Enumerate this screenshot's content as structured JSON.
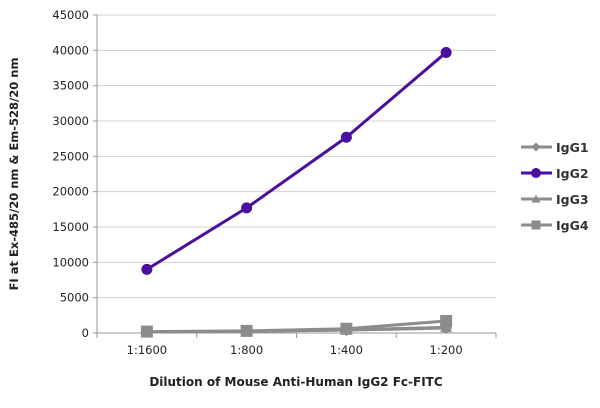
{
  "chart_data": {
    "type": "line",
    "title": "",
    "xlabel": "Dilution of Mouse Anti-Human IgG2 Fc-FITC",
    "ylabel": "FI at Ex-485/20 nm & Em-528/20 nm",
    "categories": [
      "1:1600",
      "1:800",
      "1:400",
      "1:200"
    ],
    "ylim": [
      0,
      45000
    ],
    "yticks": [
      0,
      5000,
      10000,
      15000,
      20000,
      25000,
      30000,
      35000,
      40000,
      45000
    ],
    "grid": true,
    "legend": "right",
    "series": [
      {
        "name": "IgG1",
        "values": [
          150,
          250,
          400,
          700
        ],
        "color": "#8c8c8c",
        "marker": "diamond"
      },
      {
        "name": "IgG2",
        "values": [
          9000,
          17700,
          27700,
          39700
        ],
        "color": "#4b0fa0",
        "marker": "circle"
      },
      {
        "name": "IgG3",
        "values": [
          150,
          250,
          450,
          800
        ],
        "color": "#8c8c8c",
        "marker": "triangle"
      },
      {
        "name": "IgG4",
        "values": [
          200,
          300,
          600,
          1700
        ],
        "color": "#8c8c8c",
        "marker": "square"
      }
    ]
  }
}
